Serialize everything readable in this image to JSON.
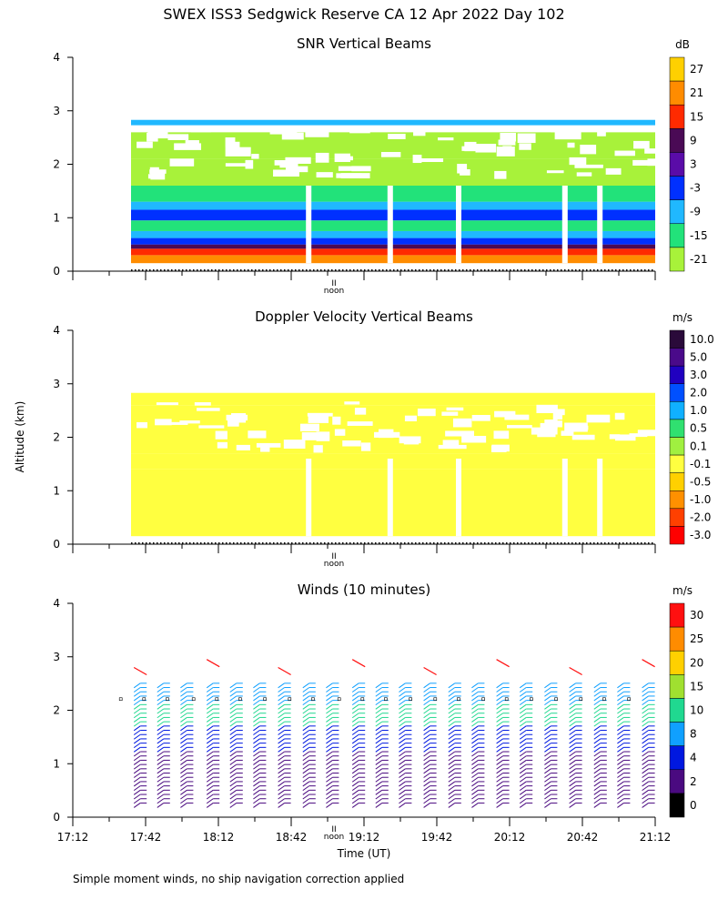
{
  "figure": {
    "title": "SWEX ISS3 Sedgwick Reserve CA  12 Apr 2022 Day 102",
    "footer": "Simple moment winds, no ship navigation correction applied",
    "y_axis_label": "Altitude (km)",
    "x_axis_label": "Time (UT)",
    "noon_label": "noon",
    "noon_marker": "II"
  },
  "chart_data": [
    {
      "type": "heatmap",
      "title": "SNR Vertical Beams",
      "ylabel": "Altitude (km)",
      "ylim": [
        0,
        4
      ],
      "yticks": [
        "0",
        "1",
        "2",
        "3",
        "4"
      ],
      "xlim_hours": [
        17.2,
        21.2
      ],
      "data_range_hours": [
        17.6,
        21.2
      ],
      "colorbar": {
        "unit": "dB",
        "labels": [
          "27",
          "21",
          "15",
          "9",
          "3",
          "-3",
          "-9",
          "-15",
          "-21"
        ],
        "colors": [
          "#ffd000",
          "#ff8c00",
          "#ff2a00",
          "#4a0a55",
          "#5a0ca8",
          "#0030ff",
          "#20b8ff",
          "#22e27a",
          "#a8f23a"
        ]
      },
      "profile": [
        {
          "alt_top": 0.15,
          "color": "#ffd000"
        },
        {
          "alt_top": 0.3,
          "color": "#ff8c00"
        },
        {
          "alt_top": 0.42,
          "color": "#ff2a00"
        },
        {
          "alt_top": 0.5,
          "color": "#4a0a55"
        },
        {
          "alt_top": 0.62,
          "color": "#0030ff"
        },
        {
          "alt_top": 0.75,
          "color": "#20b8ff"
        },
        {
          "alt_top": 0.95,
          "color": "#22e27a"
        },
        {
          "alt_top": 1.15,
          "color": "#0030ff"
        },
        {
          "alt_top": 1.3,
          "color": "#20b8ff"
        },
        {
          "alt_top": 1.6,
          "color": "#22e27a"
        },
        {
          "alt_top": 2.1,
          "color": "#a8f23a"
        },
        {
          "alt_top": 2.6,
          "color": "#a8f23a"
        },
        {
          "alt_top": 2.73,
          "color": "#ffffff"
        },
        {
          "alt_top": 2.83,
          "color": "#20b8ff"
        }
      ],
      "gaps_hours": [
        18.82,
        19.38,
        19.85,
        20.58,
        20.82
      ]
    },
    {
      "type": "heatmap",
      "title": "Doppler Velocity Vertical Beams",
      "ylabel": "Altitude (km)",
      "ylim": [
        0,
        4
      ],
      "yticks": [
        "0",
        "1",
        "2",
        "3",
        "4"
      ],
      "xlim_hours": [
        17.2,
        21.2
      ],
      "data_range_hours": [
        17.6,
        21.2
      ],
      "colorbar": {
        "unit": "m/s",
        "labels": [
          "10.0",
          "5.0",
          "3.0",
          "2.0",
          "1.0",
          "0.5",
          "0.1",
          "-0.1",
          "-0.5",
          "-1.0",
          "-2.0",
          "-3.0"
        ],
        "colors": [
          "#2a0a3a",
          "#4a0a8a",
          "#2000c0",
          "#0050ff",
          "#10b0ff",
          "#30e070",
          "#a0f040",
          "#ffff40",
          "#ffd000",
          "#ff9000",
          "#ff4000",
          "#ff0000"
        ]
      },
      "profile": [
        {
          "alt_top": 1.4,
          "color": "#ffff40"
        },
        {
          "alt_top": 1.7,
          "color": "#ffff40"
        },
        {
          "alt_top": 2.6,
          "color": "#ffff40"
        },
        {
          "alt_top": 2.83,
          "color": "#ffff40"
        }
      ],
      "gaps_hours": [
        18.82,
        19.38,
        19.85,
        20.58,
        20.82
      ]
    },
    {
      "type": "wind_barbs",
      "title": "Winds (10 minutes)",
      "ylabel": "Altitude (km)",
      "xlabel": "Time (UT)",
      "ylim": [
        0,
        4
      ],
      "yticks": [
        "0",
        "1",
        "2",
        "3",
        "4"
      ],
      "xlim_hours": [
        17.2,
        21.2
      ],
      "xticks": [
        {
          "h": 17.2,
          "label": "17:12"
        },
        {
          "h": 17.7,
          "label": "17:42"
        },
        {
          "h": 18.2,
          "label": "18:12"
        },
        {
          "h": 18.7,
          "label": "18:42"
        },
        {
          "h": 19.2,
          "label": "19:12"
        },
        {
          "h": 19.7,
          "label": "19:42"
        },
        {
          "h": 20.2,
          "label": "20:12"
        },
        {
          "h": 20.7,
          "label": "20:42"
        },
        {
          "h": 21.2,
          "label": "21:12"
        }
      ],
      "columns_hours": [
        17.62,
        17.78,
        17.94,
        18.12,
        18.28,
        18.44,
        18.61,
        18.78,
        18.94,
        19.12,
        19.28,
        19.44,
        19.61,
        19.78,
        19.94,
        20.11,
        20.27,
        20.44,
        20.61,
        20.78,
        20.94,
        21.11
      ],
      "colorbar": {
        "unit": "m/s",
        "labels": [
          "30",
          "25",
          "20",
          "15",
          "10",
          "8",
          "4",
          "2",
          "0"
        ],
        "colors": [
          "#ff1010",
          "#ff8c00",
          "#ffd000",
          "#a0e030",
          "#20d890",
          "#10a0ff",
          "#0018e0",
          "#4a0a80",
          "#000000"
        ]
      },
      "speed_profile": [
        {
          "alt_top": 1.2,
          "color": "#4a0a80"
        },
        {
          "alt_top": 1.7,
          "color": "#0018e0"
        },
        {
          "alt_top": 2.1,
          "color": "#20d890"
        },
        {
          "alt_top": 2.5,
          "color": "#10a0ff"
        }
      ]
    }
  ]
}
